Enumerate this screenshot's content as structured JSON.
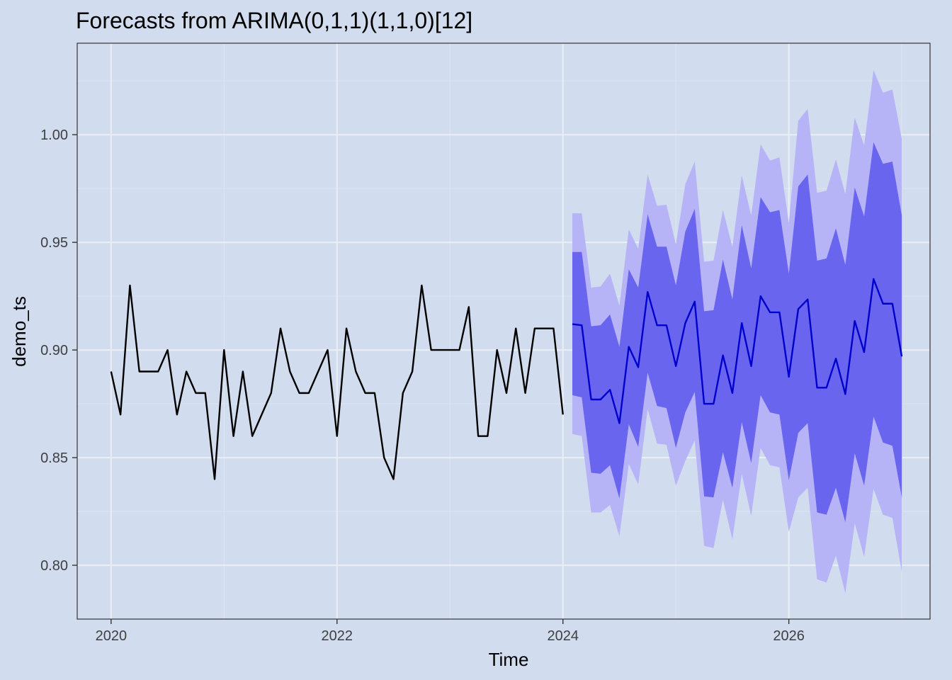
{
  "chart_data": {
    "type": "line",
    "title": "Forecasts from ARIMA(0,1,1)(1,1,0)[12]",
    "xlabel": "Time",
    "ylabel": "demo_ts",
    "xlim": [
      2019.7,
      2027.25
    ],
    "ylim": [
      0.775,
      1.0425
    ],
    "x_ticks": [
      2020,
      2022,
      2024,
      2026
    ],
    "x_tick_labels": [
      "2020",
      "2022",
      "2024",
      "2026"
    ],
    "y_ticks": [
      0.8,
      0.85,
      0.9,
      0.95,
      1.0
    ],
    "y_tick_labels": [
      "0.80",
      "0.85",
      "0.90",
      "0.95",
      "1.00"
    ],
    "grid": true,
    "legend": "none",
    "colors": {
      "background": "#d1dcee",
      "grid_major": "#e9edf4",
      "grid_minor": "#dde4f0",
      "observed": "#000000",
      "forecast": "#0000cc",
      "band_80": "#6a65ee",
      "band_95": "#b6b4f7"
    },
    "history": {
      "name": "observed",
      "start": 2020.0,
      "frequency": 12,
      "values": [
        0.89,
        0.87,
        0.93,
        0.89,
        0.89,
        0.89,
        0.9,
        0.87,
        0.89,
        0.88,
        0.88,
        0.84,
        0.9,
        0.86,
        0.89,
        0.86,
        0.87,
        0.88,
        0.91,
        0.89,
        0.88,
        0.88,
        0.89,
        0.9,
        0.86,
        0.91,
        0.89,
        0.88,
        0.88,
        0.85,
        0.84,
        0.88,
        0.89,
        0.93,
        0.9,
        0.9,
        0.9,
        0.9,
        0.92,
        0.86,
        0.86,
        0.9,
        0.88,
        0.91,
        0.88,
        0.91,
        0.91,
        0.91,
        0.87
      ]
    },
    "forecast": {
      "name": "point forecast",
      "start": 2024.0833,
      "frequency": 12,
      "values": [
        0.912,
        0.9115,
        0.877,
        0.877,
        0.8815,
        0.866,
        0.9015,
        0.892,
        0.927,
        0.9115,
        0.9115,
        0.8925,
        0.9125,
        0.9225,
        0.875,
        0.875,
        0.8975,
        0.88,
        0.9125,
        0.8925,
        0.925,
        0.9175,
        0.9175,
        0.8875,
        0.919,
        0.9235,
        0.8825,
        0.8825,
        0.896,
        0.8795,
        0.9135,
        0.899,
        0.933,
        0.9215,
        0.9215,
        0.897
      ],
      "lo80": [
        0.879,
        0.878,
        0.843,
        0.8425,
        0.8465,
        0.831,
        0.8655,
        0.855,
        0.8895,
        0.874,
        0.873,
        0.8545,
        0.871,
        0.8805,
        0.832,
        0.8315,
        0.8525,
        0.836,
        0.8665,
        0.8475,
        0.879,
        0.871,
        0.87,
        0.8395,
        0.8615,
        0.866,
        0.8245,
        0.8235,
        0.836,
        0.82,
        0.852,
        0.837,
        0.869,
        0.857,
        0.8555,
        0.8315
      ],
      "hi80": [
        0.9455,
        0.9455,
        0.911,
        0.9115,
        0.9165,
        0.9015,
        0.9375,
        0.929,
        0.963,
        0.948,
        0.948,
        0.93,
        0.955,
        0.9655,
        0.918,
        0.9185,
        0.942,
        0.9235,
        0.958,
        0.938,
        0.971,
        0.964,
        0.965,
        0.9355,
        0.976,
        0.9815,
        0.9415,
        0.9425,
        0.9565,
        0.9395,
        0.9755,
        0.962,
        0.9965,
        0.9865,
        0.9875,
        0.9625
      ],
      "lo95": [
        0.861,
        0.86,
        0.8245,
        0.8245,
        0.828,
        0.8135,
        0.847,
        0.8375,
        0.8725,
        0.8565,
        0.856,
        0.837,
        0.8485,
        0.858,
        0.809,
        0.808,
        0.8305,
        0.812,
        0.8425,
        0.823,
        0.8545,
        0.8465,
        0.8455,
        0.8155,
        0.8315,
        0.836,
        0.7935,
        0.792,
        0.8045,
        0.787,
        0.8195,
        0.804,
        0.8355,
        0.8235,
        0.822,
        0.797
      ],
      "hi95": [
        0.9635,
        0.9635,
        0.929,
        0.9295,
        0.9355,
        0.9205,
        0.956,
        0.947,
        0.9815,
        0.967,
        0.9675,
        0.949,
        0.977,
        0.9875,
        0.941,
        0.9415,
        0.965,
        0.948,
        0.981,
        0.9625,
        0.9955,
        0.988,
        0.9895,
        0.959,
        1.0065,
        1.012,
        0.973,
        0.974,
        0.9885,
        0.9725,
        1.008,
        0.995,
        1.03,
        1.0195,
        1.021,
        0.998
      ]
    }
  }
}
